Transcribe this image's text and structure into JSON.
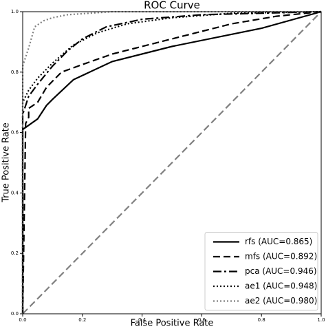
{
  "chart_data": {
    "type": "line",
    "title": "ROC Curve",
    "x_label": "False Positive Rate",
    "y_label": "True Positive Rate",
    "xlim": [
      0,
      1
    ],
    "ylim": [
      0,
      1
    ],
    "xticks": [
      {
        "value": 0,
        "label": "0.0"
      },
      {
        "value": 0.2,
        "label": "0.2"
      },
      {
        "value": 0.4,
        "label": "0.4"
      },
      {
        "value": 0.6,
        "label": "0.6"
      },
      {
        "value": 0.8,
        "label": "0.8"
      },
      {
        "value": 1,
        "label": "1.0"
      }
    ],
    "yticks": [
      {
        "value": 0,
        "label": "0.0"
      },
      {
        "value": 0.2,
        "label": "0.2"
      },
      {
        "value": 0.4,
        "label": "0.4"
      },
      {
        "value": 0.6,
        "label": "0.6"
      },
      {
        "value": 0.8,
        "label": "0.8"
      },
      {
        "value": 1,
        "label": "1.0"
      }
    ],
    "legend": "lower right",
    "reference_line": {
      "x": [
        0,
        1
      ],
      "values": [
        0,
        1
      ],
      "color": "#808080",
      "linestyle": "dashed"
    },
    "series": [
      {
        "name": "rfs (AUC=0.865)",
        "color": "#000000",
        "linestyle": "solid",
        "x": [
          0,
          0,
          0.05,
          0.08,
          0.1,
          0.17,
          0.3,
          0.5,
          0.8,
          1
        ],
        "values": [
          0,
          0.61,
          0.645,
          0.69,
          0.71,
          0.775,
          0.835,
          0.885,
          0.945,
          1
        ]
      },
      {
        "name": "mfs (AUC=0.892)",
        "color": "#000000",
        "linestyle": "dashed",
        "x": [
          0,
          0.01,
          0.02,
          0.02,
          0.05,
          0.08,
          0.13,
          0.2,
          0.3,
          0.5,
          0.7,
          0.85,
          1
        ],
        "values": [
          0,
          0.63,
          0.65,
          0.68,
          0.7,
          0.75,
          0.8,
          0.825,
          0.86,
          0.91,
          0.96,
          0.985,
          1
        ]
      },
      {
        "name": "pca (AUC=0.946)",
        "color": "#000000",
        "linestyle": "dashdot",
        "x": [
          0,
          0,
          0.02,
          0.05,
          0.1,
          0.15,
          0.2,
          0.28,
          0.4,
          0.6,
          1
        ],
        "values": [
          0,
          0.66,
          0.72,
          0.76,
          0.82,
          0.87,
          0.91,
          0.95,
          0.975,
          0.99,
          1
        ]
      },
      {
        "name": "ae1 (AUC=0.948)",
        "color": "#000000",
        "linestyle": "dotted",
        "x": [
          0,
          0,
          0.02,
          0.05,
          0.1,
          0.17,
          0.25,
          0.35,
          0.5,
          0.7,
          1
        ],
        "values": [
          0,
          0.7,
          0.74,
          0.78,
          0.83,
          0.89,
          0.93,
          0.96,
          0.98,
          0.995,
          1
        ]
      },
      {
        "name": "ae2 (AUC=0.980)",
        "color": "#808080",
        "linestyle": "dotted",
        "x": [
          0,
          0,
          0.01,
          0.02,
          0.04,
          0.07,
          0.1,
          0.15,
          0.3,
          1
        ],
        "values": [
          0,
          0.82,
          0.85,
          0.88,
          0.95,
          0.97,
          0.98,
          0.99,
          1,
          1
        ]
      }
    ]
  }
}
